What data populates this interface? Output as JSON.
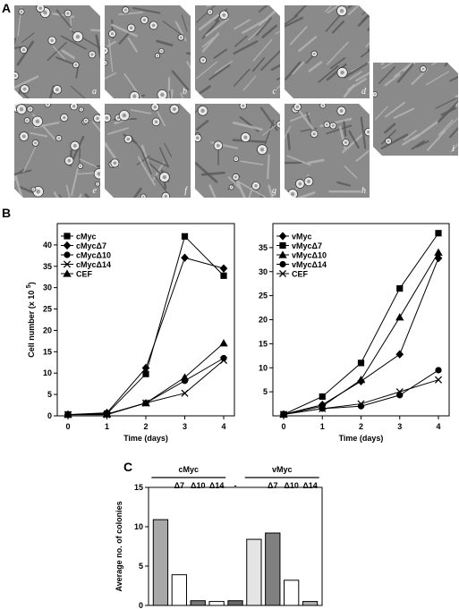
{
  "panels": {
    "a": "A",
    "b": "B",
    "c": "C"
  },
  "micrographs": {
    "labels": [
      "a",
      "b",
      "c",
      "d",
      "i",
      "e",
      "f",
      "g",
      "h"
    ],
    "base_color": "#8a8a8a",
    "dense_labels": [
      "c",
      "d",
      "i"
    ]
  },
  "chart_data": [
    {
      "type": "line",
      "xlabel": "Time (days)",
      "ylabel": "Cell number (x 10",
      "ylabel_sup": "5",
      "ylabel_close": ")",
      "x": [
        0,
        1,
        2,
        3,
        4
      ],
      "xlim": [
        0,
        4
      ],
      "ylim": [
        0,
        45
      ],
      "yticks": [
        0,
        5,
        10,
        15,
        20,
        25,
        30,
        35,
        40
      ],
      "legend": "top-left",
      "series": [
        {
          "name": "cMyc",
          "marker": "square",
          "values": [
            0.3,
            0.5,
            9.8,
            42,
            32.8
          ]
        },
        {
          "name": "cMycΔ7",
          "marker": "diamond",
          "values": [
            0.3,
            0.7,
            11.2,
            37,
            34.5
          ]
        },
        {
          "name": "cMycΔ10",
          "marker": "circle",
          "values": [
            0.3,
            0.3,
            3.0,
            8.2,
            13.5
          ]
        },
        {
          "name": "cMycΔ14",
          "marker": "x",
          "values": [
            0.3,
            0.3,
            3.0,
            5.3,
            13.0
          ]
        },
        {
          "name": "CEF",
          "marker": "triangle",
          "values": [
            0.3,
            0.4,
            3.0,
            9.0,
            17.0
          ]
        }
      ]
    },
    {
      "type": "line",
      "xlabel": "Time (days)",
      "x": [
        0,
        1,
        2,
        3,
        4
      ],
      "xlim": [
        0,
        4
      ],
      "ylim": [
        0,
        40
      ],
      "yticks": [
        5,
        10,
        15,
        20,
        25,
        30,
        35
      ],
      "legend": "top-left",
      "series": [
        {
          "name": "vMyc",
          "marker": "diamond",
          "values": [
            0.3,
            2.3,
            7.2,
            12.8,
            32.8
          ]
        },
        {
          "name": "vMycΔ7",
          "marker": "square",
          "values": [
            0.3,
            4.0,
            11.0,
            26.5,
            38.0
          ]
        },
        {
          "name": "vMycΔ10",
          "marker": "triangle",
          "values": [
            0.3,
            2.0,
            7.5,
            20.5,
            34.0
          ]
        },
        {
          "name": "vMycΔ14",
          "marker": "circle",
          "values": [
            0.3,
            1.5,
            2.0,
            4.3,
            9.5
          ]
        },
        {
          "name": "CEF",
          "marker": "x",
          "values": [
            0.3,
            1.5,
            2.5,
            5.0,
            7.5
          ]
        }
      ]
    },
    {
      "type": "bar",
      "ylabel": "Average no. of colonies",
      "ylim": [
        0,
        15
      ],
      "yticks": [
        0,
        5,
        10,
        15
      ],
      "group_labels": [
        "cMyc",
        "vMyc"
      ],
      "categories": [
        "cMyc",
        "cMycΔ7",
        "cMycΔ10",
        "cMycΔ14",
        "-",
        "vMyc",
        "vMycΔ7",
        "vMycΔ10",
        "vMycΔ14"
      ],
      "category_labels": [
        "",
        "Δ7",
        "Δ10",
        "Δ14",
        "-",
        "",
        "Δ7",
        "Δ10",
        "Δ14"
      ],
      "values": [
        10.9,
        3.9,
        0.6,
        0.5,
        0.6,
        8.4,
        9.2,
        3.2,
        0.5
      ],
      "colors": [
        "#a8a8a8",
        "#ffffff",
        "#777777",
        "#ffffff",
        "#666666",
        "#e4e4e4",
        "#808080",
        "#ffffff",
        "#b0b0b0"
      ]
    }
  ]
}
